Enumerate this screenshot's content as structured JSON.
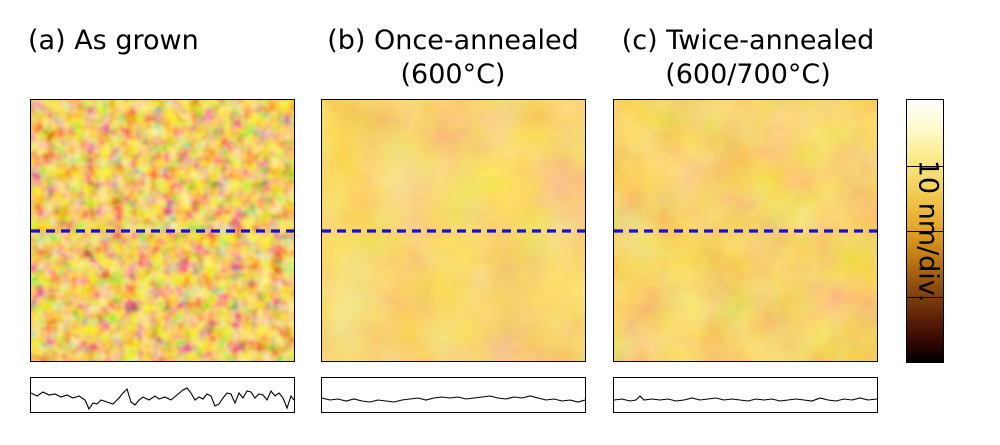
{
  "panels": [
    {
      "id": "a",
      "title_line1": "(a) As grown",
      "title_line2": ""
    },
    {
      "id": "b",
      "title_line1": "(b) Once-annealed",
      "title_line2": "(600°C)"
    },
    {
      "id": "c",
      "title_line1": "(c) Twice-annealed",
      "title_line2": "(600/700°C)"
    }
  ],
  "colorbar": {
    "label": "10 nm/div.",
    "divisions": 4
  },
  "colors": {
    "scan_line": "#1414c8",
    "profile_line": "#000000",
    "afm_palette": [
      "#000000",
      "#5a1e07",
      "#c07a14",
      "#f3cd55",
      "#ffffff"
    ]
  }
}
